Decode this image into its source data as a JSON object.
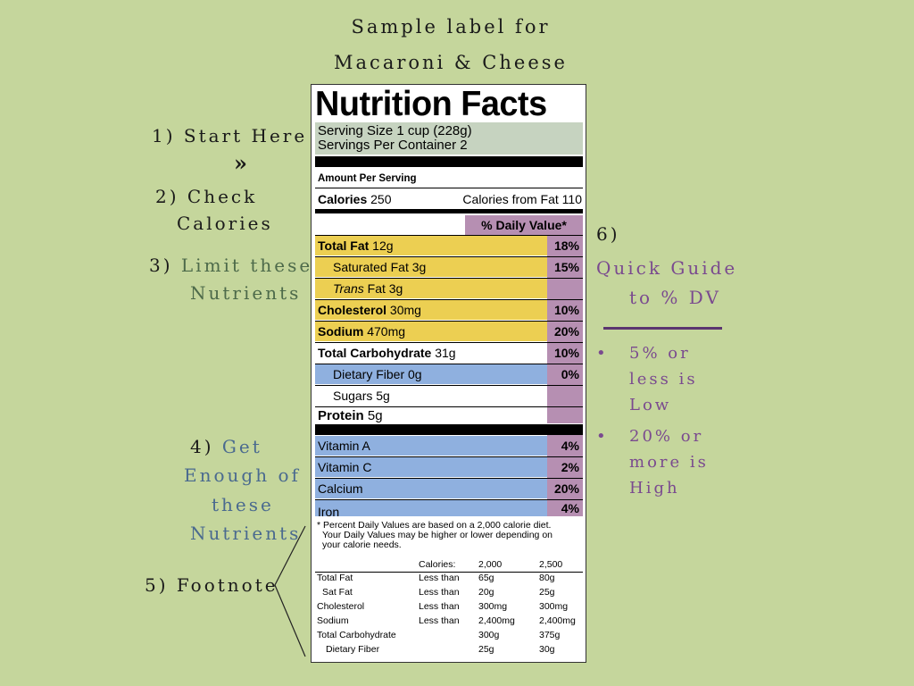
{
  "header": {
    "line1": "Sample label for",
    "line2": "Macaroni & Cheese"
  },
  "annotations": {
    "a1": "1) Start Here",
    "arrow": "»",
    "a2_line1": "2) Check",
    "a2_line2": "Calories",
    "a3_num": "3)",
    "a3_word": "Limit these",
    "a3_line2": "Nutrients",
    "a4_num": "4)",
    "a4_word": "Get",
    "a4_line2": "Enough of",
    "a4_line3": "these",
    "a4_line4": "Nutrients",
    "a5": "5) Footnote",
    "a6_num": "6)",
    "a6_line1": "Quick Guide",
    "a6_line2": "to % DV",
    "bullet1": [
      "5% or",
      "less is",
      "Low"
    ],
    "bullet2": [
      "20% or",
      "more is",
      "High"
    ],
    "bullet_char": "•"
  },
  "label": {
    "title": "Nutrition Facts",
    "serving_size": "Serving Size 1 cup (228g)",
    "servings_per": "Servings Per Container  2",
    "amount_per": "Amount Per Serving",
    "calories_label": "Calories",
    "calories_value": "250",
    "calories_fat": "Calories from Fat 110",
    "dv_header": "% Daily Value*",
    "nutrients": [
      {
        "bold": "Total Fat",
        "rest": " 12g",
        "pct": "18%"
      },
      {
        "bold": "",
        "rest": "Saturated Fat 3g",
        "pct": "15%"
      },
      {
        "bold": "",
        "italic": "Trans",
        "rest": " Fat 3g",
        "pct": ""
      },
      {
        "bold": "Cholesterol",
        "rest": " 30mg",
        "pct": "10%"
      },
      {
        "bold": "Sodium",
        "rest": " 470mg",
        "pct": "20%"
      },
      {
        "bold": "Total Carbohydrate",
        "rest": " 31g",
        "pct": "10%"
      },
      {
        "bold": "",
        "rest": "Dietary Fiber 0g",
        "pct": "0%"
      },
      {
        "bold": "",
        "rest": "Sugars 5g",
        "pct": ""
      },
      {
        "bold": "Protein",
        "rest": " 5g",
        "pct": ""
      }
    ],
    "vitamins": [
      {
        "name": "Vitamin A",
        "pct": "4%"
      },
      {
        "name": "Vitamin C",
        "pct": "2%"
      },
      {
        "name": "Calcium",
        "pct": "20%"
      },
      {
        "name": "Iron",
        "pct": "4%"
      }
    ],
    "footnote_lines": [
      "* Percent Daily Values are based on a 2,000 calorie diet.",
      "  Your Daily Values may be higher or lower depending on",
      "  your calorie needs."
    ],
    "foot_table": {
      "header": [
        "",
        "Calories:",
        "2,000",
        "2,500"
      ],
      "rows": [
        [
          "Total Fat",
          "Less than",
          "65g",
          "80g"
        ],
        [
          "  Sat Fat",
          "Less than",
          "20g",
          "25g"
        ],
        [
          "Cholesterol",
          "Less than",
          "300mg",
          "300mg"
        ],
        [
          "Sodium",
          "Less than",
          "2,400mg",
          "2,400mg"
        ],
        [
          "Total Carbohydrate",
          "",
          "300g",
          "375g"
        ],
        [
          "  Dietary Fiber",
          "",
          "25g",
          "30g"
        ]
      ]
    }
  },
  "colors": {
    "background": "#c5d69c",
    "fat_band": "#eccf52",
    "vitamin_band": "#8fb0df",
    "dv_column": "#b68fb2",
    "serving_band": "#c6d3c0",
    "accent_purple": "#7a4a8f",
    "accent_blue": "#4a6a8f"
  }
}
